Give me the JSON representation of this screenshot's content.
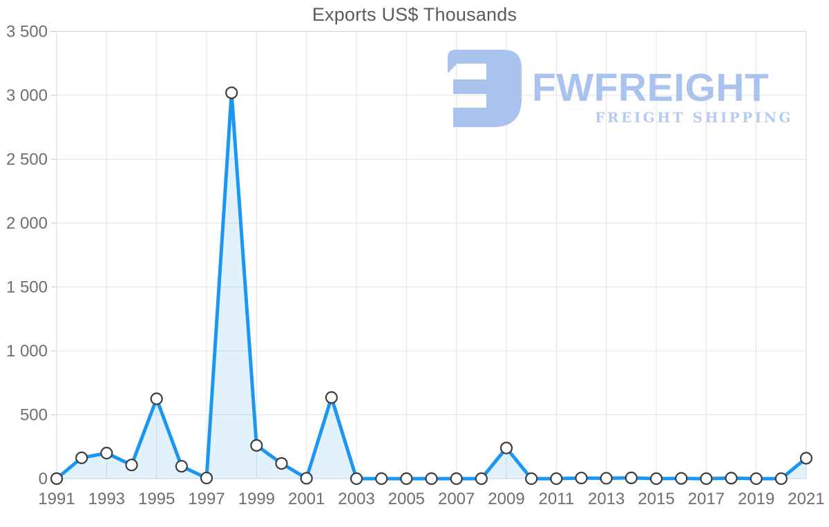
{
  "title": "Exports US$ Thousands",
  "watermark": {
    "brand": "FWFREIGHT",
    "tagline": "FREIGHT SHIPPING",
    "brand_color": "#a9c3ee",
    "tagline_color": "#b4cbf3"
  },
  "chart_data": {
    "type": "area",
    "title": "Exports US$ Thousands",
    "x": [
      1991,
      1992,
      1993,
      1994,
      1995,
      1996,
      1997,
      1998,
      1999,
      2000,
      2001,
      2002,
      2003,
      2004,
      2005,
      2006,
      2007,
      2008,
      2009,
      2010,
      2011,
      2012,
      2013,
      2014,
      2015,
      2016,
      2017,
      2018,
      2019,
      2020,
      2021
    ],
    "series": [
      {
        "name": "Exports US$ Thousands",
        "values": [
          0,
          163,
          200,
          107,
          625,
          97,
          5,
          3020,
          260,
          119,
          3,
          635,
          0,
          0,
          0,
          0,
          0,
          0,
          240,
          0,
          0,
          5,
          3,
          6,
          0,
          2,
          0,
          4,
          0,
          0,
          160
        ]
      }
    ],
    "xlabel": "",
    "ylabel": "",
    "ylim": [
      0,
      3500
    ],
    "ytick_step": 500,
    "xtick_step": 2,
    "ytick_labels": [
      "0",
      "500",
      "1 000",
      "1 500",
      "2 000",
      "2 500",
      "3 000",
      "3 500"
    ],
    "grid": true,
    "legend": "none",
    "colors": {
      "line": "#1b97f3",
      "fill": "rgba(27,151,243,0.13)",
      "grid": "#e3e3e3",
      "border": "#d6d6d6",
      "tick": "#c9c9c9",
      "axis_text": "#6e6e6e",
      "marker_fill": "#ffffff",
      "marker_stroke": "#3c3c3c"
    }
  }
}
